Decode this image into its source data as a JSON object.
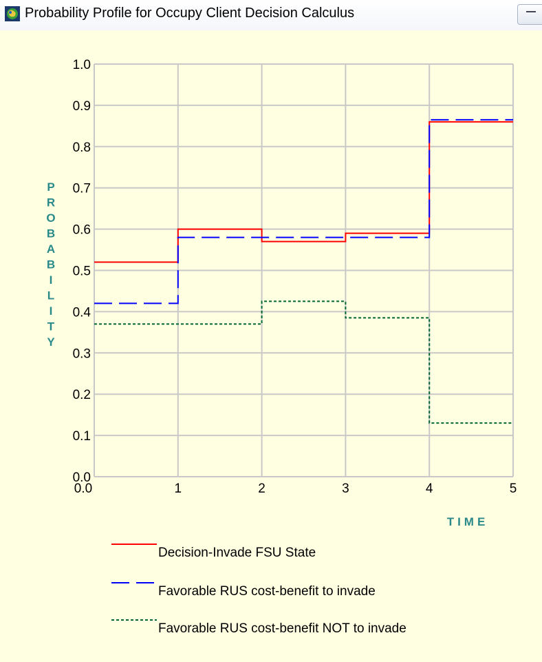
{
  "window": {
    "title": "Probability Profile for Occupy Client Decision Calculus",
    "app_icon": "app-globe-icon",
    "control_icon": "restore-icon"
  },
  "colors": {
    "background": "#ffffe1",
    "grid": "#c8c8c8",
    "axis_label": "#2a8a8a",
    "series": [
      "#ff0000",
      "#0000ff",
      "#006633"
    ]
  },
  "chart_data": {
    "type": "line",
    "step": true,
    "title": "",
    "xlabel": "TIME",
    "ylabel": "PROBABILITY",
    "xlim": [
      0,
      5
    ],
    "ylim": [
      0,
      1
    ],
    "x_ticks": [
      "0.0",
      "1",
      "2",
      "3",
      "4",
      "5"
    ],
    "y_ticks": [
      "0.0",
      "0.1",
      "0.2",
      "0.3",
      "0.4",
      "0.5",
      "0.6",
      "0.7",
      "0.8",
      "0.9",
      "1.0"
    ],
    "grid": true,
    "legend_position": "bottom",
    "series": [
      {
        "name": "Decision-Invade FSU State",
        "style": "solid",
        "color": "#ff0000",
        "x": [
          0,
          1,
          2,
          3,
          4
        ],
        "values": [
          0.52,
          0.6,
          0.57,
          0.59,
          0.86
        ]
      },
      {
        "name": "Favorable RUS cost-benefit to invade",
        "style": "dashed",
        "color": "#0000ff",
        "x": [
          0,
          1,
          2,
          3,
          4
        ],
        "values": [
          0.42,
          0.58,
          0.58,
          0.58,
          0.865
        ]
      },
      {
        "name": "Favorable RUS cost-benefit NOT to invade",
        "style": "dotted",
        "color": "#006633",
        "x": [
          0,
          1,
          2,
          3,
          4
        ],
        "values": [
          0.37,
          0.37,
          0.425,
          0.385,
          0.13
        ]
      }
    ]
  }
}
